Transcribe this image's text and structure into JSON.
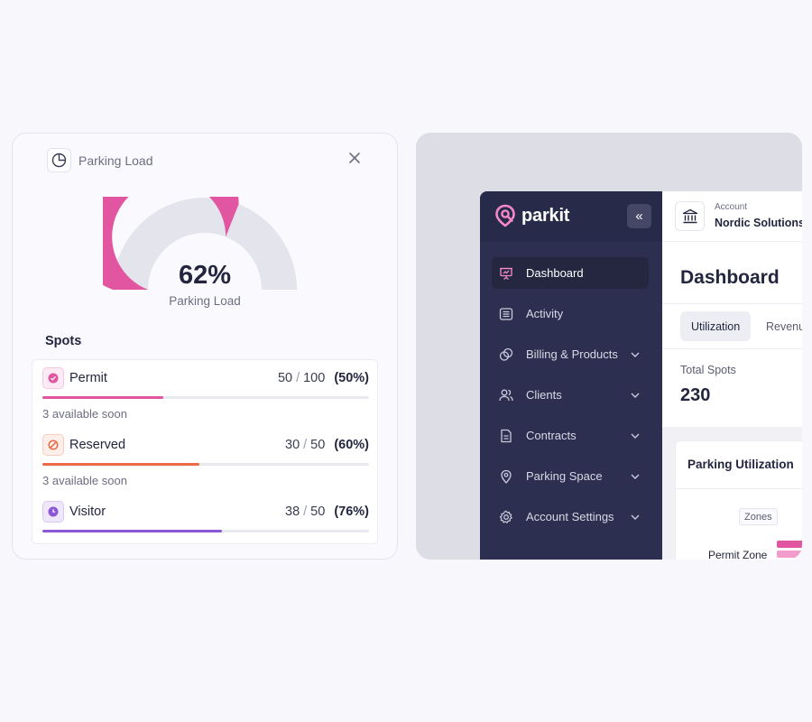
{
  "load_card": {
    "title": "Parking Load",
    "gauge": {
      "value": 0.62,
      "value_label": "62%",
      "label": "Parking Load",
      "fill_color": "#e255a0",
      "track_color": "#e4e4ec"
    },
    "spots_heading": "Spots",
    "spots": [
      {
        "name": "Permit",
        "used": "50",
        "total": "100",
        "percent": "(50%)",
        "fill": 0.37,
        "color": "#e255a0",
        "icon_bg": "#fdeaf4",
        "icon": "check-circle-icon",
        "note": "3 available soon"
      },
      {
        "name": "Reserved",
        "used": "30",
        "total": "50",
        "percent": "(60%)",
        "fill": 0.48,
        "color": "#ec6a45",
        "icon_bg": "#fdeee9",
        "icon": "ban-icon",
        "note": "3 available soon"
      },
      {
        "name": "Visitor",
        "used": "38",
        "total": "50",
        "percent": "(76%)",
        "fill": 0.55,
        "color": "#8c57d6",
        "icon_bg": "#efe8fb",
        "icon": "clock-icon",
        "note": ""
      }
    ]
  },
  "app": {
    "brand": "parkit",
    "brand_color": "#f38ac7",
    "collapse_glyph": "«",
    "account": {
      "label": "Account",
      "name": "Nordic Solutions"
    },
    "nav": [
      {
        "label": "Dashboard",
        "icon": "presentation-icon",
        "active": true,
        "chevron": false
      },
      {
        "label": "Activity",
        "icon": "list-icon",
        "active": false,
        "chevron": false
      },
      {
        "label": "Billing & Products",
        "icon": "coins-icon",
        "active": false,
        "chevron": true
      },
      {
        "label": "Clients",
        "icon": "users-icon",
        "active": false,
        "chevron": true
      },
      {
        "label": "Contracts",
        "icon": "document-icon",
        "active": false,
        "chevron": true
      },
      {
        "label": "Parking Space",
        "icon": "map-pin-icon",
        "active": false,
        "chevron": true
      },
      {
        "label": "Account Settings",
        "icon": "gear-icon",
        "active": false,
        "chevron": true
      }
    ],
    "page_title": "Dashboard",
    "tabs": [
      "Utilization",
      "Revenu"
    ],
    "total_spots": {
      "label": "Total Spots",
      "value": "230"
    },
    "utilization": {
      "title": "Parking Utilization",
      "legend_tag": "Zones",
      "row_label": "Permit Zone"
    }
  }
}
